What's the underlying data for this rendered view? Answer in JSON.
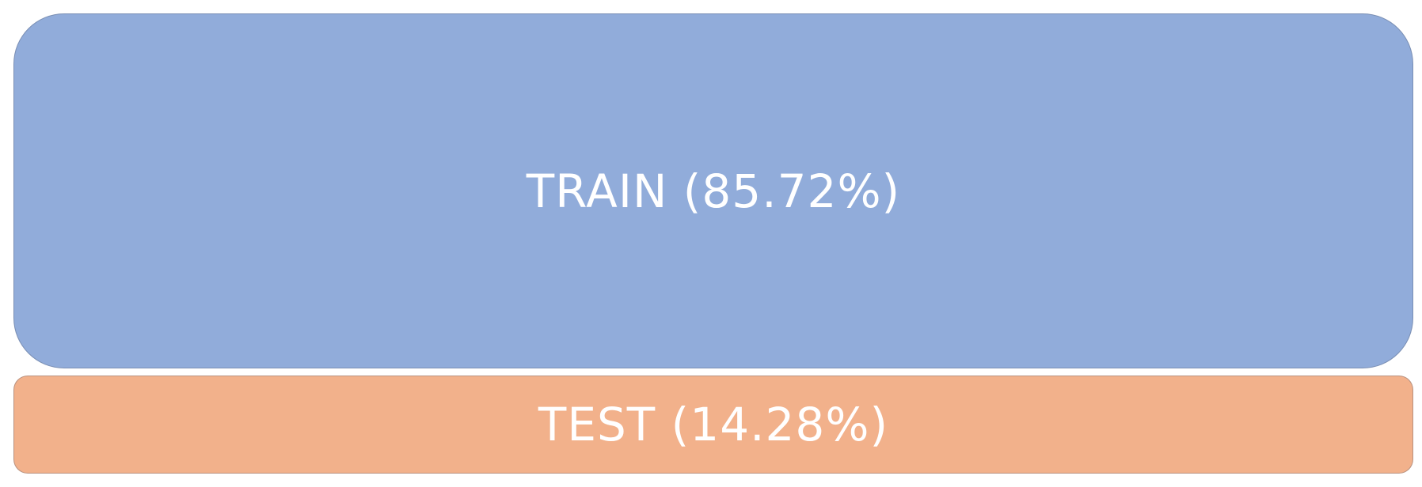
{
  "segments": [
    {
      "label": "TRAIN (85.72%)",
      "fraction": 0.8572,
      "color": "#91acda"
    },
    {
      "label": "TEST (14.28%)",
      "fraction": 0.1428,
      "color": "#f2b18b"
    }
  ]
}
